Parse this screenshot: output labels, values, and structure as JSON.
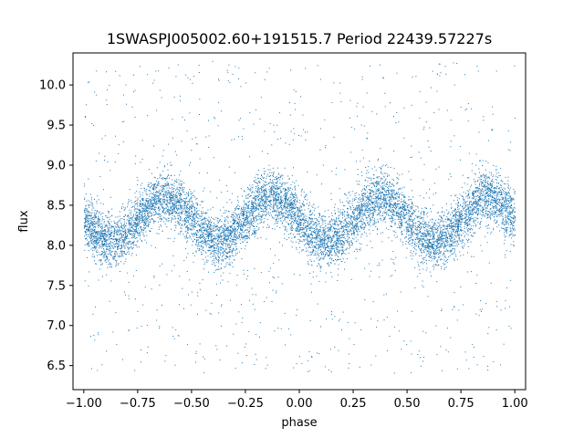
{
  "chart_data": {
    "type": "scatter",
    "title": "1SWASPJ005002.60+191515.7 Period 22439.57227s",
    "xlabel": "phase",
    "ylabel": "flux",
    "xlim": [
      -1.05,
      1.05
    ],
    "ylim": [
      6.2,
      10.4
    ],
    "x_ticks": [
      -1.0,
      -0.75,
      -0.5,
      -0.25,
      0.0,
      0.25,
      0.5,
      0.75,
      1.0
    ],
    "x_tick_labels": [
      "−1.00",
      "−0.75",
      "−0.50",
      "−0.25",
      "0.00",
      "0.25",
      "0.50",
      "0.75",
      "1.00"
    ],
    "y_ticks": [
      6.5,
      7.0,
      7.5,
      8.0,
      8.5,
      9.0,
      9.5,
      10.0
    ],
    "y_tick_labels": [
      "6.5",
      "7.0",
      "7.5",
      "8.0",
      "8.5",
      "9.0",
      "9.5",
      "10.0"
    ],
    "grid": false,
    "point_color": "#1f77b4",
    "x_range": [
      -1.0,
      1.0
    ],
    "series": [
      {
        "phase_minima": [
          -0.875,
          -0.375,
          0.125,
          0.625
        ],
        "phase_maxima": [
          -0.625,
          -0.125,
          0.375,
          0.875
        ],
        "min_flux_center": 8.05,
        "max_flux_center": 8.6,
        "band_half_width": 0.3,
        "outlier_range": [
          6.4,
          10.3
        ]
      }
    ]
  }
}
